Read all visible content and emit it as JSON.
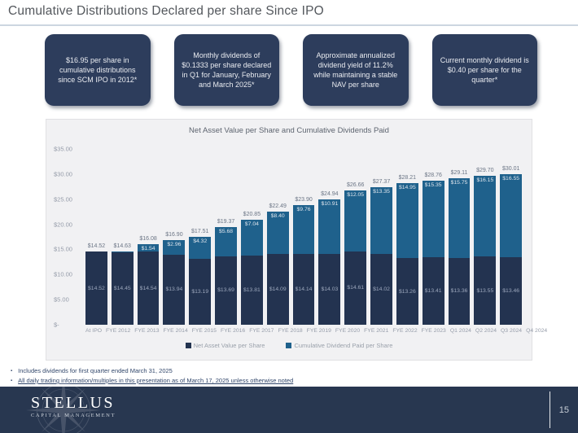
{
  "slide": {
    "title": "Cumulative Distributions Declared per share Since IPO"
  },
  "highlight_boxes": [
    {
      "text": "$16.95 per share in cumulative distributions since SCM IPO in 2012*"
    },
    {
      "text": "Monthly dividends of $0.1333 per share declared in Q1 for January, February and March 2025*"
    },
    {
      "text": "Approximate annualized dividend yield of 11.2% while maintaining a stable NAV per share"
    },
    {
      "text": "Current monthly dividend is $0.40 per share for the quarter*"
    }
  ],
  "chart_data": {
    "type": "bar",
    "stacked": true,
    "title": "Net Asset Value per Share and Cumulative Dividends Paid",
    "categories": [
      "At IPO",
      "FYE 2012",
      "FYE 2013",
      "FYE 2014",
      "FYE 2015",
      "FYE 2016",
      "FYE 2017",
      "FYE 2018",
      "FYE 2019",
      "FYE 2020",
      "FYE 2021",
      "FYE 2022",
      "FYE 2023",
      "Q1 2024",
      "Q2 2024",
      "Q3 2024",
      "Q4 2024"
    ],
    "series": [
      {
        "name": "Net Asset Value per Share",
        "color": "#233350",
        "values": [
          14.52,
          14.45,
          14.54,
          13.94,
          13.19,
          13.69,
          13.81,
          14.09,
          14.14,
          14.03,
          14.61,
          14.02,
          13.26,
          13.41,
          13.36,
          13.55,
          13.46
        ]
      },
      {
        "name": "Cumulative Dividend Paid per Share",
        "color": "#1f618c",
        "values": [
          0,
          0.18,
          1.54,
          2.96,
          4.32,
          5.68,
          7.04,
          8.4,
          9.76,
          10.91,
          12.05,
          13.35,
          14.95,
          15.35,
          15.75,
          16.15,
          16.55
        ]
      }
    ],
    "totals": [
      14.52,
      14.63,
      16.08,
      16.9,
      17.51,
      19.37,
      20.85,
      22.49,
      23.9,
      24.94,
      26.66,
      27.37,
      28.21,
      28.76,
      29.11,
      29.7,
      30.01
    ],
    "y_ticks": [
      {
        "label": "$35.00",
        "value": 35
      },
      {
        "label": "$30.00",
        "value": 30
      },
      {
        "label": "$25.00",
        "value": 25
      },
      {
        "label": "$20.00",
        "value": 20
      },
      {
        "label": "$15.00",
        "value": 15
      },
      {
        "label": "$10.00",
        "value": 10
      },
      {
        "label": "$5.00",
        "value": 5
      },
      {
        "label": "$-",
        "value": 0
      }
    ],
    "ylim": [
      0,
      35
    ],
    "grid": false,
    "legend_position": "bottom"
  },
  "footnotes": [
    {
      "text": "Includes dividends for first quarter ended March 31, 2025"
    },
    {
      "text": "All daily trading information/multiples in this presentation as of March 17, 2025 unless otherwise noted"
    }
  ],
  "footer": {
    "brand": "STELLUS",
    "brand_sub": "CAPITAL MANAGEMENT",
    "page": "15"
  }
}
